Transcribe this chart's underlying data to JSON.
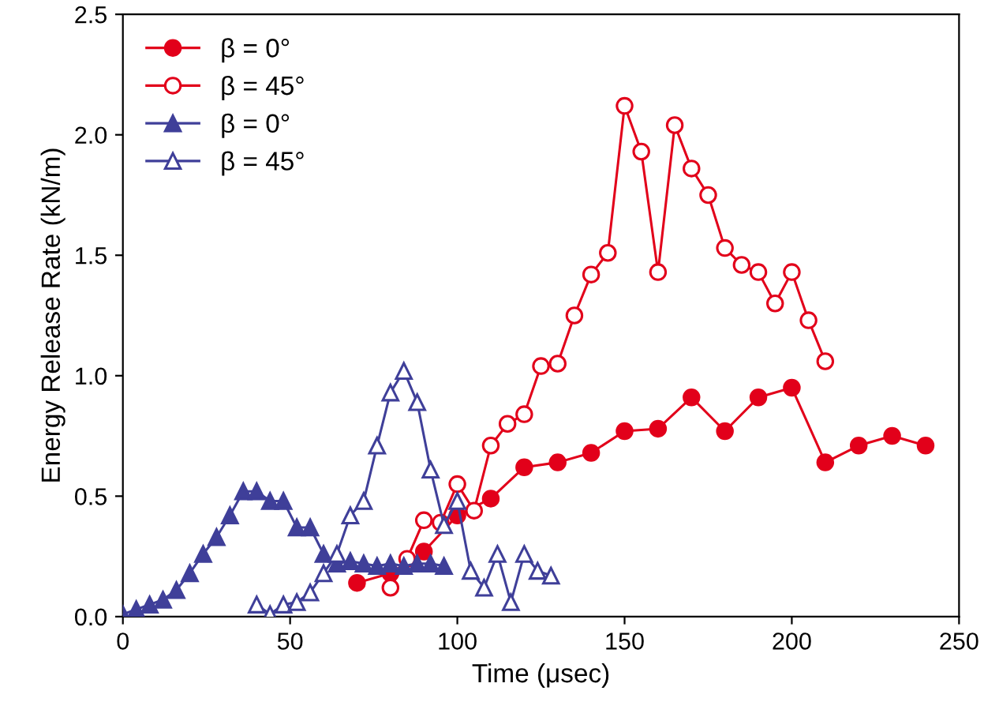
{
  "chart_data": {
    "type": "line",
    "xlabel": "Time (μsec)",
    "ylabel": "Energy Release Rate (kN/m)",
    "xlim": [
      0,
      250
    ],
    "ylim": [
      0,
      2.5
    ],
    "xticks": [
      0,
      50,
      100,
      150,
      200,
      250
    ],
    "yticks": [
      {
        "value": 0,
        "label": "0.0"
      },
      {
        "value": 0.5,
        "label": "0.5"
      },
      {
        "value": 1,
        "label": "1.0"
      },
      {
        "value": 1.5,
        "label": "1.5"
      },
      {
        "value": 2,
        "label": "2.0"
      },
      {
        "value": 2.5,
        "label": "2.5"
      }
    ],
    "grid": false,
    "legend": "top left",
    "line_style": "solid",
    "series": [
      {
        "name": "β = 0°",
        "color": "#e2001a",
        "marker": "circle",
        "x": [
          70,
          80,
          90,
          100,
          110,
          120,
          130,
          140,
          150,
          160,
          170,
          180,
          190,
          200,
          210,
          220,
          230,
          240
        ],
        "values": [
          0.14,
          0.18,
          0.27,
          0.42,
          0.49,
          0.62,
          0.64,
          0.68,
          0.77,
          0.78,
          0.91,
          0.77,
          0.91,
          0.95,
          0.64,
          0.71,
          0.75,
          0.71
        ]
      },
      {
        "name": "β = 45°",
        "color": "#e2001a",
        "marker": "circle",
        "x": [
          80,
          85,
          90,
          95,
          100,
          105,
          110,
          115,
          120,
          125,
          130,
          135,
          140,
          145,
          150,
          155,
          160,
          165,
          170,
          175,
          180,
          185,
          190,
          195,
          200,
          205,
          210
        ],
        "values": [
          0.12,
          0.24,
          0.4,
          0.39,
          0.55,
          0.44,
          0.71,
          0.8,
          0.84,
          1.04,
          1.05,
          1.25,
          1.42,
          1.51,
          2.12,
          1.93,
          1.43,
          2.04,
          1.86,
          1.75,
          1.53,
          1.46,
          1.43,
          1.3,
          1.43,
          1.23,
          1.06
        ]
      },
      {
        "name": "β = 0°",
        "color": "#3f3f99",
        "marker": "triangle",
        "x": [
          0,
          4,
          8,
          12,
          16,
          20,
          24,
          28,
          32,
          36,
          40,
          44,
          48,
          52,
          56,
          60,
          64,
          68,
          72,
          76,
          80,
          84,
          88,
          92,
          96
        ],
        "values": [
          0.01,
          0.03,
          0.05,
          0.07,
          0.11,
          0.18,
          0.26,
          0.33,
          0.42,
          0.52,
          0.52,
          0.48,
          0.48,
          0.37,
          0.37,
          0.26,
          0.22,
          0.23,
          0.22,
          0.21,
          0.22,
          0.21,
          0.22,
          0.22,
          0.21
        ]
      },
      {
        "name": "β = 45°",
        "color": "#3f3f99",
        "marker": "triangle",
        "x": [
          40,
          44,
          48,
          52,
          56,
          60,
          64,
          68,
          72,
          76,
          80,
          84,
          88,
          92,
          96,
          100,
          104,
          108,
          112,
          116,
          120,
          124,
          128
        ],
        "values": [
          0.05,
          0.01,
          0.05,
          0.06,
          0.1,
          0.18,
          0.26,
          0.42,
          0.48,
          0.71,
          0.93,
          1.02,
          0.89,
          0.61,
          0.38,
          0.48,
          0.19,
          0.12,
          0.26,
          0.06,
          0.26,
          0.19,
          0.17
        ]
      }
    ]
  }
}
